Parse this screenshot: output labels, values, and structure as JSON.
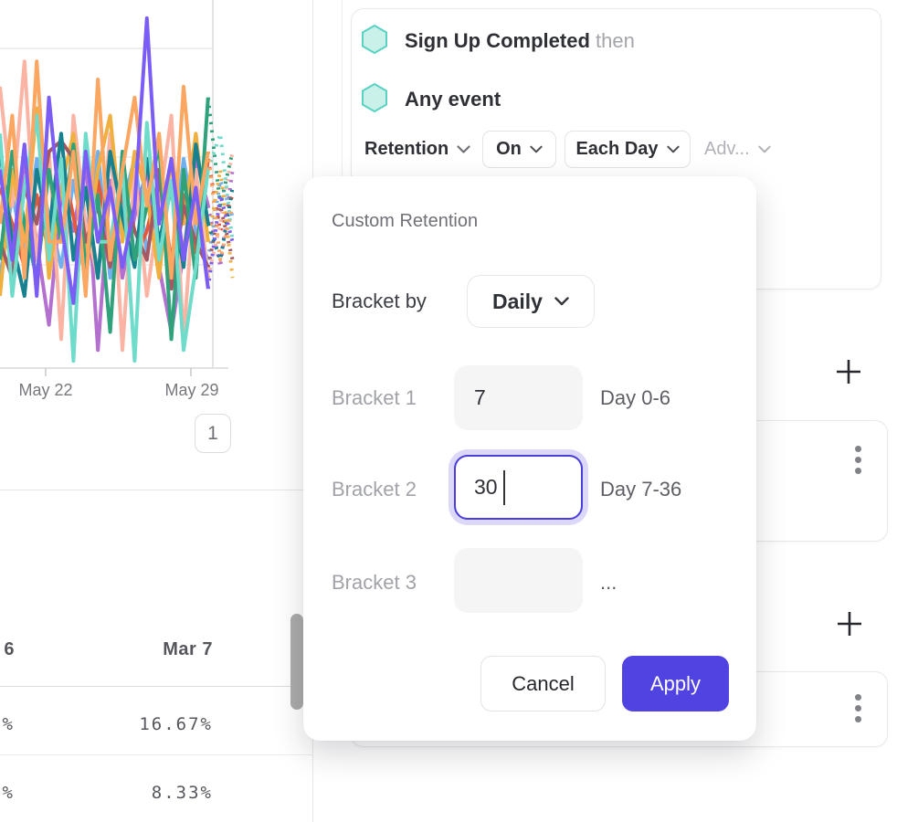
{
  "chart_data": {
    "type": "line",
    "x_ticks": [
      "May 22",
      "May 29"
    ],
    "xlabel": "",
    "ylabel": "",
    "grid": true,
    "pagination": "1",
    "note_dashed_tail": "rightmost segment of each cohort line is dotted (incomplete period)",
    "series": [
      {
        "name": "cohort-light-blue",
        "color": "#70b0ee",
        "values": [
          25,
          48,
          32,
          58,
          42,
          28,
          52,
          35,
          60,
          25,
          45,
          58,
          32,
          48,
          28,
          58,
          38,
          30,
          52,
          42
        ]
      },
      {
        "name": "cohort-orchid",
        "color": "#b470cf",
        "values": [
          45,
          28,
          58,
          35,
          12,
          48,
          38,
          58,
          5,
          52,
          25,
          42,
          55,
          28,
          10,
          32,
          58,
          45,
          28,
          55
        ]
      },
      {
        "name": "cohort-red-orange",
        "color": "#e4593c",
        "values": [
          50,
          40,
          28,
          48,
          32,
          58,
          42,
          25,
          52,
          35,
          48,
          30,
          38,
          52,
          30,
          48,
          32,
          58,
          38,
          48
        ]
      },
      {
        "name": "cohort-salmon",
        "color": "#fbb4a4",
        "values": [
          78,
          45,
          85,
          30,
          60,
          8,
          70,
          40,
          25,
          65,
          5,
          55,
          20,
          45,
          70,
          8,
          55,
          25,
          40,
          60
        ]
      },
      {
        "name": "cohort-amber",
        "color": "#f0b03f",
        "values": [
          20,
          55,
          35,
          72,
          25,
          50,
          65,
          30,
          55,
          70,
          35,
          60,
          48,
          25,
          58,
          40,
          65,
          35,
          55,
          25
        ]
      },
      {
        "name": "cohort-maroon",
        "color": "#a65862",
        "values": [
          35,
          25,
          50,
          40,
          60,
          63,
          58,
          35,
          45,
          28,
          52,
          38,
          30,
          55,
          22,
          45,
          35,
          28,
          45,
          30
        ]
      },
      {
        "name": "cohort-dark-teal",
        "color": "#17818f",
        "values": [
          60,
          35,
          20,
          55,
          38,
          65,
          30,
          50,
          25,
          60,
          42,
          28,
          58,
          35,
          50,
          28,
          62,
          40,
          30,
          50
        ]
      },
      {
        "name": "cohort-green",
        "color": "#2fa27b",
        "values": [
          30,
          60,
          40,
          25,
          55,
          35,
          62,
          28,
          48,
          10,
          60,
          30,
          45,
          62,
          8,
          55,
          25,
          75,
          45,
          60
        ]
      },
      {
        "name": "cohort-turquoise",
        "color": "#6fdbca",
        "values": [
          65,
          20,
          50,
          70,
          30,
          58,
          2,
          65,
          35,
          35,
          55,
          2,
          68,
          30,
          52,
          5,
          28,
          55,
          65,
          35
        ]
      },
      {
        "name": "cohort-orange",
        "color": "#fba661",
        "values": [
          40,
          70,
          25,
          85,
          35,
          35,
          60,
          20,
          80,
          30,
          55,
          75,
          45,
          65,
          25,
          78,
          40,
          60,
          30,
          45
        ]
      },
      {
        "name": "cohort-purple",
        "color": "#7b5cf5",
        "values": [
          55,
          30,
          62,
          20,
          75,
          40,
          18,
          60,
          35,
          50,
          28,
          45,
          97,
          40,
          58,
          30,
          50,
          22,
          48,
          35
        ]
      }
    ]
  },
  "table": {
    "left_col_fragments": [
      "6",
      "%",
      "%"
    ],
    "col_header": "Mar 7",
    "rows": [
      "16.67%",
      "8.33%"
    ]
  },
  "query_panel": {
    "steps": [
      {
        "label": "Sign Up Completed",
        "suffix": "then"
      },
      {
        "label": "Any event",
        "suffix": ""
      }
    ],
    "controls": {
      "measure": "Retention",
      "on": "On",
      "granularity": "Each Day",
      "advanced": "Adv..."
    }
  },
  "modal": {
    "title": "Custom Retention",
    "bracket_by_label": "Bracket by",
    "bracket_by_value": "Daily",
    "rows": [
      {
        "label": "Bracket 1",
        "value": "7",
        "hint": "Day 0-6"
      },
      {
        "label": "Bracket 2",
        "value": "30",
        "hint": "Day 7-36"
      },
      {
        "label": "Bracket 3",
        "value": "",
        "hint": "..."
      }
    ],
    "cancel_label": "Cancel",
    "apply_label": "Apply"
  },
  "colors": {
    "accent": "#5143e1",
    "focus_border": "#4a3ddb",
    "focus_ring": "#dcd8f8",
    "hexagon_fill": "#c9f1ea",
    "hexagon_stroke": "#5ad2c2",
    "gridline": "#e9e9e9"
  }
}
